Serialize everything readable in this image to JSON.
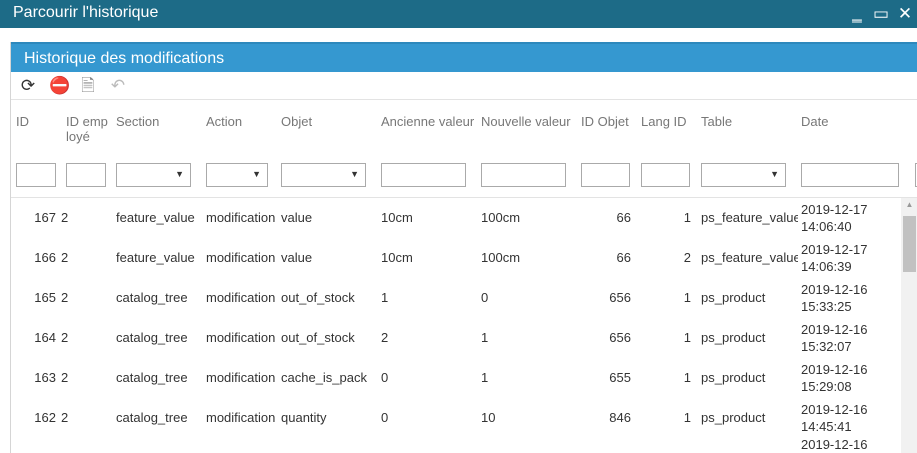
{
  "window": {
    "title": "Parcourir l'historique",
    "minimize": "‗",
    "maximize": "▭",
    "close": "✕"
  },
  "panel": {
    "title": "Historique des modifications"
  },
  "toolbar": [
    {
      "icon": "refresh-icon",
      "glyph": "⟳"
    },
    {
      "icon": "remove-icon",
      "glyph": "⛔"
    },
    {
      "icon": "csv-export-icon",
      "glyph": "🗎"
    },
    {
      "icon": "undo-icon",
      "glyph": "↶"
    }
  ],
  "columns": [
    "ID",
    "ID employé",
    "Section",
    "Action",
    "Objet",
    "Ancienne valeur",
    "Nouvelle valeur",
    "ID Objet",
    "Lang ID",
    "Table",
    "Date"
  ],
  "rows": [
    {
      "id": "167",
      "emp": "2",
      "section": "feature_value",
      "action": "modification",
      "objet": "value",
      "old": "10cm",
      "new": "100cm",
      "idobj": "66",
      "lang": "1",
      "table": "ps_feature_value",
      "date": "2019-12-17 14:06:40"
    },
    {
      "id": "166",
      "emp": "2",
      "section": "feature_value",
      "action": "modification",
      "objet": "value",
      "old": "10cm",
      "new": "100cm",
      "idobj": "66",
      "lang": "2",
      "table": "ps_feature_value",
      "date": "2019-12-17 14:06:39"
    },
    {
      "id": "165",
      "emp": "2",
      "section": "catalog_tree",
      "action": "modification",
      "objet": "out_of_stock",
      "old": "1",
      "new": "0",
      "idobj": "656",
      "lang": "1",
      "table": "ps_product",
      "date": "2019-12-16 15:33:25"
    },
    {
      "id": "164",
      "emp": "2",
      "section": "catalog_tree",
      "action": "modification",
      "objet": "out_of_stock",
      "old": "2",
      "new": "1",
      "idobj": "656",
      "lang": "1",
      "table": "ps_product",
      "date": "2019-12-16 15:32:07"
    },
    {
      "id": "163",
      "emp": "2",
      "section": "catalog_tree",
      "action": "modification",
      "objet": "cache_is_pack",
      "old": "0",
      "new": "1",
      "idobj": "655",
      "lang": "1",
      "table": "ps_product",
      "date": "2019-12-16 15:29:08"
    },
    {
      "id": "162",
      "emp": "2",
      "section": "catalog_tree",
      "action": "modification",
      "objet": "quantity",
      "old": "0",
      "new": "10",
      "idobj": "846",
      "lang": "1",
      "table": "ps_product",
      "date": "2019-12-16 14:45:41"
    },
    {
      "id": "",
      "emp": "",
      "section": "",
      "action": "",
      "objet": "",
      "old": "",
      "new": "",
      "idobj": "",
      "lang": "",
      "table": "",
      "date": "2019-12-16"
    }
  ]
}
